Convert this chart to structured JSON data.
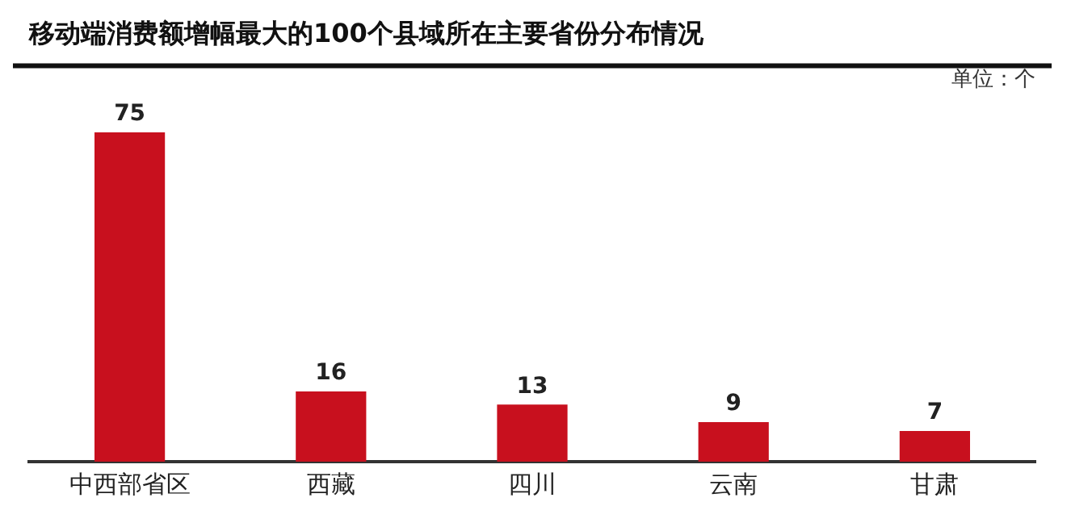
{
  "chart_data": {
    "type": "bar",
    "title": "移动端消费额增幅最大的100个县域所在主要省份分布情况",
    "annotations": [
      "单位：个"
    ],
    "categories": [
      "中西部省区",
      "西藏",
      "四川",
      "云南",
      "甘肃"
    ],
    "values": [
      75,
      16,
      13,
      9,
      7
    ],
    "color": "#c8101e",
    "data_labels": true,
    "grid": false,
    "legend": false
  }
}
